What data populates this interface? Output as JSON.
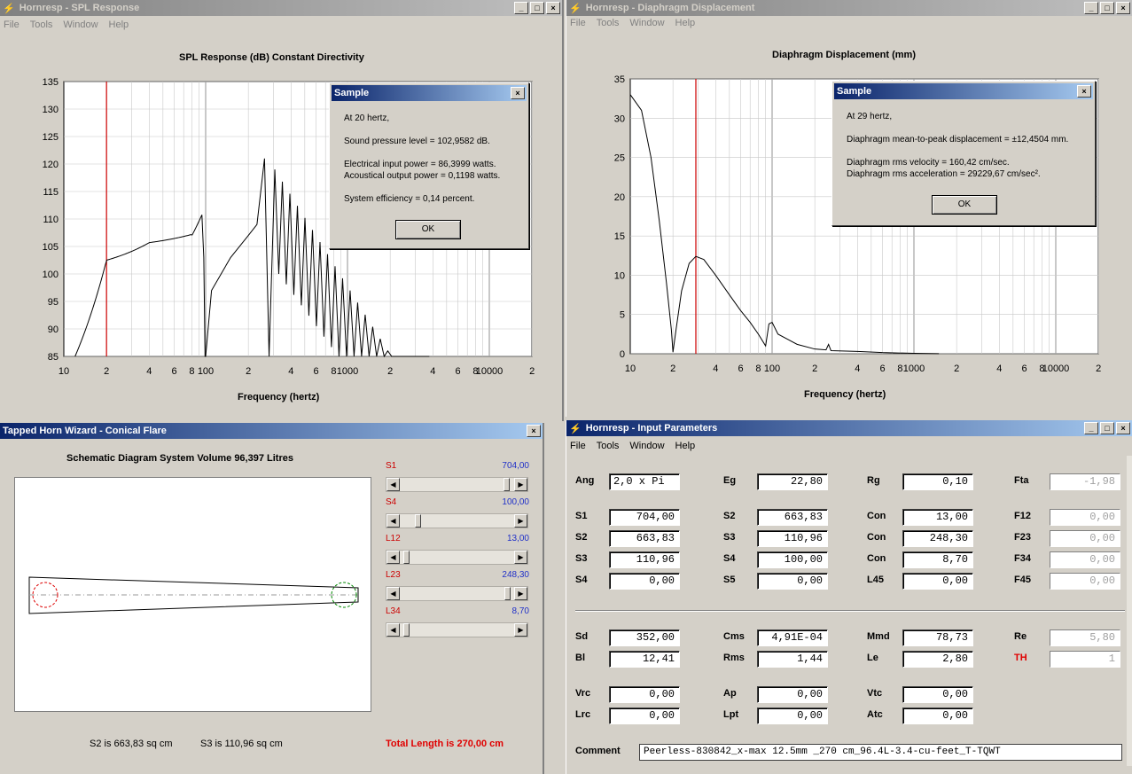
{
  "spl_window": {
    "title": "Hornresp - SPL Response",
    "menu": [
      "File",
      "Tools",
      "Window",
      "Help"
    ],
    "chart_title": "SPL Response (dB)    Constant Directivity",
    "xlabel": "Frequency (hertz)",
    "y_ticks": [
      "135",
      "130",
      "125",
      "120",
      "115",
      "110",
      "105",
      "100",
      "95",
      "90",
      "85"
    ],
    "x_ticks": [
      "10",
      "2",
      "4",
      "6",
      "8",
      "100",
      "2",
      "4",
      "6",
      "8",
      "1000",
      "2",
      "4",
      "6",
      "8",
      "10000",
      "2"
    ],
    "marker_freq": 20,
    "dialog": {
      "title": "Sample",
      "lines": [
        "At 20 hertz,",
        "Sound pressure level = 102,9582 dB.",
        "Electrical input power = 86,3999 watts.",
        "Acoustical output power = 0,1198 watts.",
        "System efficiency = 0,14 percent."
      ],
      "ok": "OK"
    }
  },
  "disp_window": {
    "title": "Hornresp - Diaphragm Displacement",
    "menu": [
      "File",
      "Tools",
      "Window",
      "Help"
    ],
    "chart_title": "Diaphragm Displacement (mm)",
    "xlabel": "Frequency (hertz)",
    "y_ticks": [
      "35",
      "30",
      "25",
      "20",
      "15",
      "10",
      "5",
      "0"
    ],
    "x_ticks": [
      "10",
      "2",
      "4",
      "6",
      "8",
      "100",
      "2",
      "4",
      "6",
      "8",
      "1000",
      "2",
      "4",
      "6",
      "8",
      "10000",
      "2"
    ],
    "marker_freq": 29,
    "dialog": {
      "title": "Sample",
      "lines": [
        "At 29 hertz,",
        "Diaphragm mean-to-peak displacement = ±12,4504 mm.",
        "Diaphragm rms velocity = 160,42 cm/sec.",
        "Diaphragm rms acceleration = 29229,67 cm/sec²."
      ],
      "ok": "OK"
    }
  },
  "wizard": {
    "title": "Tapped Horn Wizard - Conical Flare",
    "heading": "Schematic Diagram    System Volume 96,397 Litres",
    "sliders": [
      {
        "label": "S1",
        "value": "704,00",
        "pos": 0.96
      },
      {
        "label": "S4",
        "value": "100,00",
        "pos": 0.14
      },
      {
        "label": "L12",
        "value": "13,00",
        "pos": 0.03
      },
      {
        "label": "L23",
        "value": "248,30",
        "pos": 0.97
      },
      {
        "label": "L34",
        "value": "8,70",
        "pos": 0.03
      }
    ],
    "s2": "S2 is 663,83 sq cm",
    "s3": "S3 is 110,96 sq cm",
    "total": "Total Length is 270,00 cm"
  },
  "params": {
    "title": "Hornresp - Input Parameters",
    "menu": [
      "File",
      "Tools",
      "Window",
      "Help"
    ],
    "rows": [
      [
        [
          "Ang",
          "2,0 x Pi"
        ],
        [
          "Eg",
          "22,80"
        ],
        [
          "Rg",
          "0,10"
        ],
        [
          "Fta",
          "-1,98"
        ]
      ],
      [
        [
          "S1",
          "704,00"
        ],
        [
          "S2",
          "663,83"
        ],
        [
          "Con",
          "13,00"
        ],
        [
          "F12",
          "0,00"
        ]
      ],
      [
        [
          "S2",
          "663,83"
        ],
        [
          "S3",
          "110,96"
        ],
        [
          "Con",
          "248,30"
        ],
        [
          "F23",
          "0,00"
        ]
      ],
      [
        [
          "S3",
          "110,96"
        ],
        [
          "S4",
          "100,00"
        ],
        [
          "Con",
          "8,70"
        ],
        [
          "F34",
          "0,00"
        ]
      ],
      [
        [
          "S4",
          "0,00"
        ],
        [
          "S5",
          "0,00"
        ],
        [
          "L45",
          "0,00"
        ],
        [
          "F45",
          "0,00"
        ]
      ],
      [
        [
          "Sd",
          "352,00"
        ],
        [
          "Cms",
          "4,91E-04"
        ],
        [
          "Mmd",
          "78,73"
        ],
        [
          "Re",
          "5,80"
        ]
      ],
      [
        [
          "Bl",
          "12,41"
        ],
        [
          "Rms",
          "1,44"
        ],
        [
          "Le",
          "2,80"
        ],
        [
          "TH",
          "1"
        ]
      ],
      [
        [
          "Vrc",
          "0,00"
        ],
        [
          "Ap",
          "0,00"
        ],
        [
          "Vtc",
          "0,00"
        ]
      ],
      [
        [
          "Lrc",
          "0,00"
        ],
        [
          "Lpt",
          "0,00"
        ],
        [
          "Atc",
          "0,00"
        ]
      ]
    ],
    "comment_label": "Comment",
    "comment": "Peerless-830842_x-max 12.5mm _270 cm_96.4L-3.4-cu-feet_T-TQWT"
  },
  "colors": {
    "marker": "#cc0000",
    "accent_blue": "#2030c8",
    "total_red": "#e00000"
  }
}
